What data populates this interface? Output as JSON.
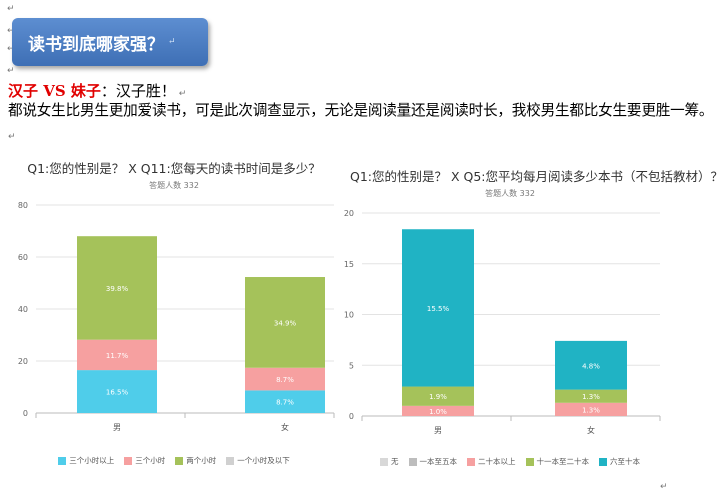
{
  "title": "读书到底哪家强？",
  "subhead": {
    "red": "汉子 VS 妹子",
    "rest": "：汉子胜！"
  },
  "body": "都说女生比男生更加爱读书，可是此次调查显示，无论是阅读量还是阅读时长，我校男生都比女生要更胜一筹。",
  "colors": {
    "cyan": "#4fcdea",
    "pink": "#f6a0a0",
    "green": "#a5c25a",
    "gray": "#c8c8c8",
    "teal": "#20b3c4",
    "lgray": "#d8d8d8",
    "dgray": "#bdbdbd"
  },
  "chart_data": [
    {
      "type": "bar",
      "title": "Q1:您的性别是？ X Q11:您每天的读书时间是多少？",
      "subtitle": "答题人数 332",
      "categories": [
        "男",
        "女"
      ],
      "ylim": [
        0,
        80
      ],
      "yticks": [
        0,
        20,
        40,
        60,
        80
      ],
      "stacked": true,
      "series": [
        {
          "name": "三个小时以上",
          "color": "#4fcdea",
          "values": [
            16.5,
            8.7
          ],
          "labels": [
            "16.5%",
            "8.7%"
          ]
        },
        {
          "name": "三个小时",
          "color": "#f6a0a0",
          "values": [
            11.7,
            8.7
          ],
          "labels": [
            "11.7%",
            "8.7%"
          ]
        },
        {
          "name": "两个小时",
          "color": "#a5c25a",
          "values": [
            39.8,
            34.9
          ],
          "labels": [
            "39.8%",
            "34.9%"
          ]
        },
        {
          "name": "一个小时及以下",
          "color": "#d0d0d0",
          "values": [
            0,
            0
          ],
          "labels": [
            "",
            ""
          ]
        }
      ],
      "grid": true,
      "legend": "bottom"
    },
    {
      "type": "bar",
      "title": "Q1:您的性别是？ X Q5:您平均每月阅读多少本书（不包括教材）？",
      "subtitle": "答题人数 332",
      "categories": [
        "男",
        "女"
      ],
      "ylim": [
        0,
        20
      ],
      "yticks": [
        0,
        5,
        10,
        15,
        20
      ],
      "stacked": true,
      "series": [
        {
          "name": "无",
          "color": "#d8d8d8",
          "values": [
            0,
            0
          ],
          "labels": [
            "",
            ""
          ]
        },
        {
          "name": "一本至五本",
          "color": "#bdbdbd",
          "values": [
            0,
            0
          ],
          "labels": [
            "",
            ""
          ]
        },
        {
          "name": "二十本以上",
          "color": "#f6a0a0",
          "values": [
            1.0,
            1.3
          ],
          "labels": [
            "1.0%",
            "1.3%"
          ]
        },
        {
          "name": "十一本至二十本",
          "color": "#a5c25a",
          "values": [
            1.9,
            1.3
          ],
          "labels": [
            "1.9%",
            "1.3%"
          ]
        },
        {
          "name": "六至十本",
          "color": "#20b3c4",
          "values": [
            15.5,
            4.8
          ],
          "labels": [
            "15.5%",
            "4.8%"
          ]
        }
      ],
      "grid": true,
      "legend": "bottom"
    }
  ]
}
